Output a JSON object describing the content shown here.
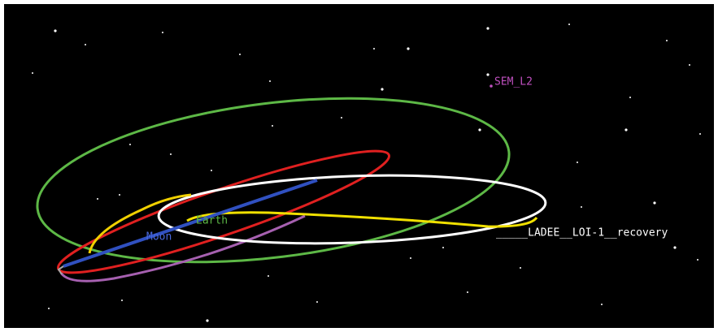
{
  "labels": {
    "sem_l2": "SEM_L2",
    "earth": "Earth",
    "moon": "Moon",
    "spacecraft": "_____LADEE__LOI-1__recovery"
  }
}
